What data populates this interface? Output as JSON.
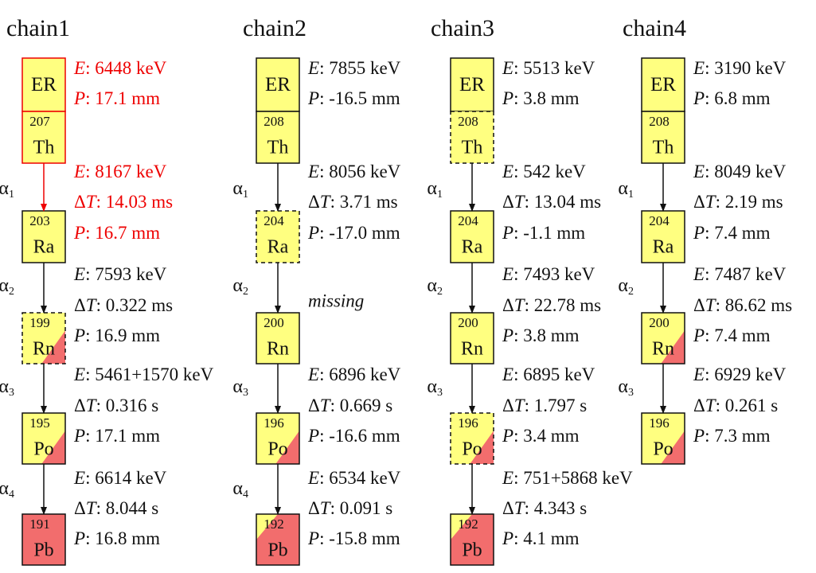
{
  "chains": [
    {
      "title": "chain1",
      "nodes": [
        {
          "element": "ER",
          "highlight": true,
          "lines": [
            {
              "key": "E",
              "text": ": 6448 keV"
            },
            {
              "key": "P",
              "text": ": 17.1 mm"
            }
          ]
        },
        {
          "mass": "207",
          "element": "Th",
          "highlight": true
        },
        {
          "mass": "203",
          "element": "Ra"
        },
        {
          "mass": "199",
          "element": "Rn",
          "border": "dashed",
          "fill": "corner"
        },
        {
          "mass": "195",
          "element": "Po",
          "fill": "corner"
        },
        {
          "mass": "191",
          "element": "Pb",
          "fill": "red"
        }
      ],
      "transitions": [
        {
          "alpha": "α",
          "index": "1",
          "highlight": true,
          "lines": [
            {
              "key": "E",
              "text": ": 8167 keV"
            },
            {
              "prefix": "Δ",
              "key": "T",
              "text": ": 14.03 ms"
            },
            {
              "key": "P",
              "text": ": 16.7 mm"
            }
          ]
        },
        {
          "alpha": "α",
          "index": "2",
          "lines": [
            {
              "key": "E",
              "text": ": 7593 keV"
            },
            {
              "prefix": "Δ",
              "key": "T",
              "text": ": 0.322 ms"
            },
            {
              "key": "P",
              "text": ": 16.9 mm"
            }
          ]
        },
        {
          "alpha": "α",
          "index": "3",
          "lines": [
            {
              "key": "E",
              "text": ": 5461+1570 keV"
            },
            {
              "prefix": "Δ",
              "key": "T",
              "text": ": 0.316 s"
            },
            {
              "key": "P",
              "text": ": 17.1 mm"
            }
          ]
        },
        {
          "alpha": "α",
          "index": "4",
          "lines": [
            {
              "key": "E",
              "text": ": 6614 keV"
            },
            {
              "prefix": "Δ",
              "key": "T",
              "text": ": 8.044 s"
            },
            {
              "key": "P",
              "text": ": 16.8 mm"
            }
          ]
        }
      ]
    },
    {
      "title": "chain2",
      "nodes": [
        {
          "element": "ER",
          "lines": [
            {
              "key": "E",
              "text": ": 7855 keV"
            },
            {
              "key": "P",
              "text": ": -16.5 mm"
            }
          ]
        },
        {
          "mass": "208",
          "element": "Th"
        },
        {
          "mass": "204",
          "element": "Ra",
          "border": "dashed"
        },
        {
          "mass": "200",
          "element": "Rn"
        },
        {
          "mass": "196",
          "element": "Po",
          "fill": "corner"
        },
        {
          "mass": "192",
          "element": "Pb",
          "fill": "mostly-red"
        }
      ],
      "transitions": [
        {
          "alpha": "α",
          "index": "1",
          "lines": [
            {
              "key": "E",
              "text": ": 8056 keV"
            },
            {
              "prefix": "Δ",
              "key": "T",
              "text": ": 3.71 ms"
            },
            {
              "key": "P",
              "text": ": -17.0 mm"
            }
          ]
        },
        {
          "alpha": "α",
          "index": "2",
          "lines": [
            {
              "text": "missing",
              "italic": true
            }
          ]
        },
        {
          "alpha": "α",
          "index": "3",
          "lines": [
            {
              "key": "E",
              "text": ": 6896 keV"
            },
            {
              "prefix": "Δ",
              "key": "T",
              "text": ": 0.669 s"
            },
            {
              "key": "P",
              "text": ": -16.6 mm"
            }
          ]
        },
        {
          "alpha": "α",
          "index": "4",
          "lines": [
            {
              "key": "E",
              "text": ": 6534 keV"
            },
            {
              "prefix": "Δ",
              "key": "T",
              "text": ": 0.091 s"
            },
            {
              "key": "P",
              "text": ": -15.8 mm"
            }
          ]
        }
      ]
    },
    {
      "title": "chain3",
      "nodes": [
        {
          "element": "ER",
          "lines": [
            {
              "key": "E",
              "text": ": 5513 keV"
            },
            {
              "key": "P",
              "text": ": 3.8 mm"
            }
          ]
        },
        {
          "mass": "208",
          "element": "Th",
          "border": "dashed"
        },
        {
          "mass": "204",
          "element": "Ra"
        },
        {
          "mass": "200",
          "element": "Rn"
        },
        {
          "mass": "196",
          "element": "Po",
          "border": "dashed",
          "fill": "corner"
        },
        {
          "mass": "192",
          "element": "Pb",
          "fill": "mostly-red"
        }
      ],
      "transitions": [
        {
          "alpha": "α",
          "index": "1",
          "lines": [
            {
              "key": "E",
              "text": ": 542 keV"
            },
            {
              "prefix": "Δ",
              "key": "T",
              "text": ": 13.04 ms"
            },
            {
              "key": "P",
              "text": ": -1.1 mm"
            }
          ]
        },
        {
          "alpha": "α",
          "index": "2",
          "lines": [
            {
              "key": "E",
              "text": ": 7493 keV"
            },
            {
              "prefix": "Δ",
              "key": "T",
              "text": ": 22.78 ms"
            },
            {
              "key": "P",
              "text": ": 3.8 mm"
            }
          ]
        },
        {
          "alpha": "α",
          "index": "3",
          "lines": [
            {
              "key": "E",
              "text": ": 6895 keV"
            },
            {
              "prefix": "Δ",
              "key": "T",
              "text": ": 1.797 s"
            },
            {
              "key": "P",
              "text": ": 3.4 mm"
            }
          ]
        },
        {
          "lines": [
            {
              "key": "E",
              "text": ": 751+5868 keV"
            },
            {
              "prefix": "Δ",
              "key": "T",
              "text": ": 4.343 s"
            },
            {
              "key": "P",
              "text": ": 4.1 mm"
            }
          ]
        }
      ]
    },
    {
      "title": "chain4",
      "nodes": [
        {
          "element": "ER",
          "lines": [
            {
              "key": "E",
              "text": ": 3190 keV"
            },
            {
              "key": "P",
              "text": ": 6.8 mm"
            }
          ]
        },
        {
          "mass": "208",
          "element": "Th"
        },
        {
          "mass": "204",
          "element": "Ra"
        },
        {
          "mass": "200",
          "element": "Rn",
          "fill": "corner"
        },
        {
          "mass": "196",
          "element": "Po",
          "fill": "corner"
        }
      ],
      "transitions": [
        {
          "alpha": "α",
          "index": "1",
          "lines": [
            {
              "key": "E",
              "text": ": 8049 keV"
            },
            {
              "prefix": "Δ",
              "key": "T",
              "text": ": 2.19 ms"
            },
            {
              "key": "P",
              "text": ": 7.4 mm"
            }
          ]
        },
        {
          "alpha": "α",
          "index": "2",
          "lines": [
            {
              "key": "E",
              "text": ": 7487 keV"
            },
            {
              "prefix": "Δ",
              "key": "T",
              "text": ": 86.62 ms"
            },
            {
              "key": "P",
              "text": ": 7.4 mm"
            }
          ]
        },
        {
          "alpha": "α",
          "index": "3",
          "lines": [
            {
              "key": "E",
              "text": ": 6929 keV"
            },
            {
              "prefix": "Δ",
              "key": "T",
              "text": ": 0.261 s"
            },
            {
              "key": "P",
              "text": ": 7.3 mm"
            }
          ]
        }
      ]
    }
  ]
}
